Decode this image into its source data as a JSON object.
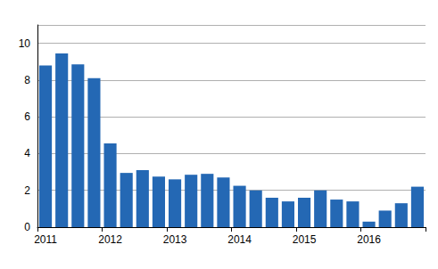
{
  "chart_data": {
    "type": "bar",
    "categories": [
      "2011",
      null,
      null,
      null,
      "2012",
      null,
      null,
      null,
      "2013",
      null,
      null,
      null,
      "2014",
      null,
      null,
      null,
      "2015",
      null,
      null,
      null,
      "2016",
      null,
      null,
      null
    ],
    "values": [
      8.8,
      9.45,
      8.85,
      8.1,
      4.55,
      2.95,
      3.1,
      2.75,
      2.6,
      2.85,
      2.9,
      2.7,
      2.25,
      2.0,
      1.6,
      1.4,
      1.6,
      2.0,
      1.5,
      1.4,
      0.3,
      0.9,
      1.3,
      2.2
    ],
    "color": "#2468b4",
    "ylim": [
      0,
      11
    ],
    "yticks": [
      0,
      2,
      4,
      6,
      8,
      10
    ],
    "grid": true
  }
}
